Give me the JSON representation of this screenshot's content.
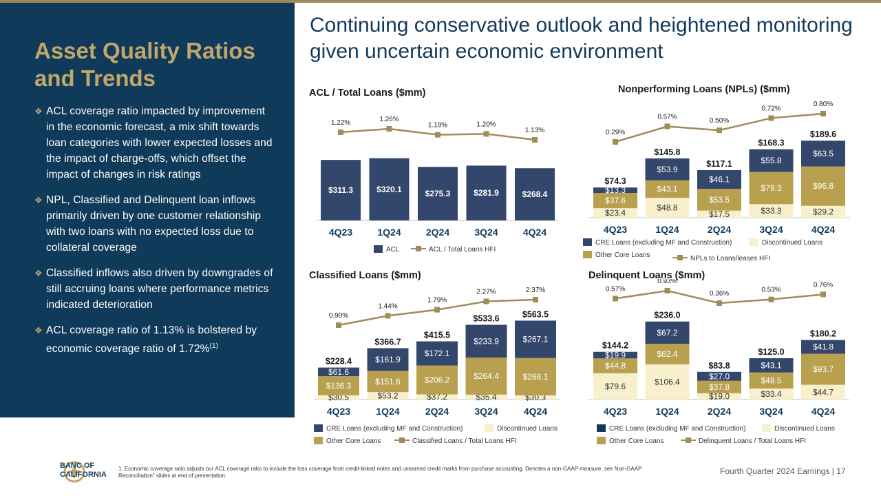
{
  "headline": "Continuing conservative outlook and heightened monitoring given uncertain economic environment",
  "sidebar": {
    "title": "Asset Quality Ratios and Trends",
    "bullets": [
      {
        "text": "ACL coverage ratio impacted by improvement in the economic forecast, a mix shift towards loan categories with lower expected losses and the impact of charge-offs, which offset the impact of changes in risk ratings"
      },
      {
        "text": "NPL, Classified and Delinquent loan inflows primarily driven by one customer relationship with two loans with no expected loss due to collateral coverage"
      },
      {
        "text": "Classified inflows also driven by downgrades of still accruing loans where performance metrics indicated deterioration"
      },
      {
        "text": "ACL coverage ratio of 1.13% is bolstered by economic coverage ratio of 1.72%",
        "sup": "(1)"
      }
    ]
  },
  "footer": {
    "logo_text_1": "BANC OF",
    "logo_text_2": "CALIFORNIA",
    "footnote": "1. Economic coverage ratio adjusts our ACL coverage ratio to include the loss coverage from credit-linked notes and unearned credit marks from purchase accounting. Denotes a non-GAAP measure, see Non-GAAP Reconciliation\" slides at end of presentation.",
    "right": "Fourth Quarter 2024 Earnings | 17"
  },
  "colors": {
    "navy": "#33466b",
    "gold": "#b8a04f",
    "cream": "#f8efcc",
    "line": "#a08c5a",
    "deep": "#103a5a",
    "dark": "#0f3a58"
  },
  "chart_data": [
    {
      "id": "acl",
      "type": "bar",
      "title": "ACL / Total Loans ($mm)",
      "categories": [
        "4Q23",
        "1Q24",
        "2Q24",
        "3Q24",
        "4Q24"
      ],
      "series": [
        {
          "name": "ACL",
          "values": [
            311.3,
            320.1,
            275.3,
            281.9,
            268.4
          ],
          "labels": [
            "$311.3",
            "$320.1",
            "$275.3",
            "$281.9",
            "$268.4"
          ]
        }
      ],
      "line": {
        "name": "ACL / Total Loans HFI",
        "values": [
          1.22,
          1.26,
          1.19,
          1.2,
          1.13
        ],
        "labels": [
          "1.22%",
          "1.26%",
          "1.19%",
          "1.20%",
          "1.13%"
        ]
      },
      "totals": null,
      "ylim": [
        0,
        340
      ],
      "legend": [
        "ACL",
        "ACL / Total Loans HFI"
      ]
    },
    {
      "id": "npl",
      "type": "bar",
      "title": "Nonperforming Loans (NPLs) ($mm)",
      "categories": [
        "4Q23",
        "1Q24",
        "2Q24",
        "3Q24",
        "4Q24"
      ],
      "series": [
        {
          "name": "Discontinued Loans",
          "values": [
            23.4,
            48.8,
            17.5,
            33.3,
            29.2
          ],
          "labels": [
            "$23.4",
            "$48.8",
            "$17.5",
            "$33.3",
            "$29.2"
          ]
        },
        {
          "name": "Other Core Loans",
          "values": [
            37.6,
            43.1,
            53.5,
            79.3,
            96.8
          ],
          "labels": [
            "$37.6",
            "$43.1",
            "$53.5",
            "$79.3",
            "$96.8"
          ]
        },
        {
          "name": "CRE Loans (excluding MF and Construction)",
          "values": [
            13.3,
            53.9,
            46.1,
            55.8,
            63.5
          ],
          "labels": [
            "$13.3",
            "$53.9",
            "$46.1",
            "$55.8",
            "$63.5"
          ]
        }
      ],
      "totals": [
        "$74.3",
        "$145.8",
        "$117.1",
        "$168.3",
        "$189.6"
      ],
      "line": {
        "name": "NPLs to Loans/leases HFI",
        "values": [
          0.29,
          0.57,
          0.5,
          0.72,
          0.8
        ],
        "labels": [
          "0.29%",
          "0.57%",
          "0.50%",
          "0.72%",
          "0.80%"
        ]
      },
      "ylim": [
        0,
        200
      ],
      "legend": [
        "CRE Loans (excluding MF and Construction)",
        "Discontinued Loans",
        "Other Core Loans",
        "NPLs to Loans/leases HFI"
      ]
    },
    {
      "id": "classified",
      "type": "bar",
      "title": "Classified Loans ($mm)",
      "categories": [
        "4Q23",
        "1Q24",
        "2Q24",
        "3Q24",
        "4Q24"
      ],
      "series": [
        {
          "name": "Discontinued Loans",
          "values": [
            30.5,
            53.2,
            37.2,
            35.4,
            30.3
          ],
          "labels": [
            "$30.5",
            "$53.2",
            "$37.2",
            "$35.4",
            "$30.3"
          ]
        },
        {
          "name": "Other Core Loans",
          "values": [
            136.3,
            151.6,
            206.2,
            264.4,
            266.1
          ],
          "labels": [
            "$136.3",
            "$151.6",
            "$206.2",
            "$264.4",
            "$266.1"
          ]
        },
        {
          "name": "CRE Loans (excluding MF and Construction)",
          "values": [
            61.6,
            161.9,
            172.1,
            233.9,
            267.1
          ],
          "labels": [
            "$61.6",
            "$161.9",
            "$172.1",
            "$233.9",
            "$267.1"
          ]
        }
      ],
      "totals": [
        "$228.4",
        "$366.7",
        "$415.5",
        "$533.6",
        "$563.5"
      ],
      "line": {
        "name": "Classified Loans / Total Loans HFI",
        "values": [
          0.9,
          1.44,
          1.79,
          2.27,
          2.37
        ],
        "labels": [
          "0.90%",
          "1.44%",
          "1.79%",
          "2.27%",
          "2.37%"
        ]
      },
      "ylim": [
        0,
        600
      ],
      "legend": [
        "CRE Loans (excluding MF and Construction)",
        "Discontinued Loans",
        "Other Core Loans",
        "Classified Loans / Total Loans HFI"
      ]
    },
    {
      "id": "delinquent",
      "type": "bar",
      "title": "Delinquent Loans ($mm)",
      "categories": [
        "4Q23",
        "1Q24",
        "2Q24",
        "3Q24",
        "4Q24"
      ],
      "series": [
        {
          "name": "Discontinued Loans",
          "values": [
            79.6,
            106.4,
            19.0,
            33.4,
            44.7
          ],
          "labels": [
            "$79.6",
            "$106.4",
            "$19.0",
            "$33.4",
            "$44.7"
          ]
        },
        {
          "name": "Other Core Loans",
          "values": [
            44.8,
            62.4,
            37.8,
            48.5,
            93.7
          ],
          "labels": [
            "$44.8",
            "$62.4",
            "$37.8",
            "$48.5",
            "$93.7"
          ]
        },
        {
          "name": "CRE Loans (excluding MF and Construction)",
          "values": [
            19.9,
            67.2,
            27.0,
            43.1,
            41.8
          ],
          "labels": [
            "$19.9",
            "$67.2",
            "$27.0",
            "$43.1",
            "$41.8"
          ]
        }
      ],
      "totals": [
        "$144.2",
        "$236.0",
        "$83.8",
        "$125.0",
        "$180.2"
      ],
      "line": {
        "name": "Delinquent Loans / Total Loans HFI",
        "values": [
          0.57,
          0.93,
          0.36,
          0.53,
          0.76
        ],
        "labels": [
          "0.57%",
          "0.93%",
          "0.36%",
          "0.53%",
          "0.76%"
        ]
      },
      "ylim": [
        0,
        250
      ],
      "legend": [
        "CRE Loans (excluding MF and Construction)",
        "Discontinued Loans",
        "Other Core Loans",
        "Delinquent Loans / Total Loans HFI"
      ]
    }
  ]
}
